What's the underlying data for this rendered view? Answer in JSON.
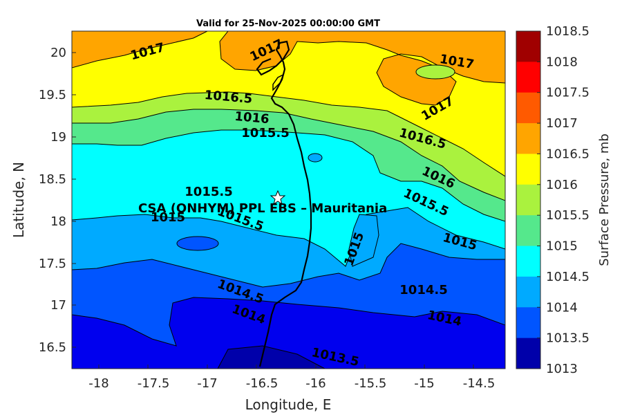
{
  "title": "Valid for 25-Nov-2025 00:00:00 GMT",
  "xlabel": "Longitude, E",
  "ylabel": "Latitude, N",
  "xticks": [
    "-18",
    "-17.5",
    "-17",
    "-16.5",
    "-16",
    "-15.5",
    "-15",
    "-14.5"
  ],
  "yticks": [
    "20",
    "19.5",
    "19",
    "18.5",
    "18",
    "17.5",
    "17",
    "16.5"
  ],
  "colorbar": {
    "label": "Surface Pressure, mb",
    "ticks": [
      "1018.5",
      "1018",
      "1017.5",
      "1017",
      "1016.5",
      "1016",
      "1015.5",
      "1015",
      "1014.5",
      "1014",
      "1013.5",
      "1013"
    ],
    "colors": [
      "#a00000",
      "#ff0000",
      "#ff5a00",
      "#ffa500",
      "#ffff00",
      "#aaf23e",
      "#55e88c",
      "#00ffff",
      "#00aaff",
      "#0055ff",
      "#0000ee",
      "#0000aa"
    ]
  },
  "contour_labels": [
    "1017",
    "1017",
    "1017",
    "1017",
    "1016.5",
    "1016.5",
    "1016",
    "1016",
    "1015.5",
    "1015.5",
    "1015.5",
    "1015.5",
    "1015",
    "1015",
    "1015",
    "1014.5",
    "1014.5",
    "1014",
    "1014",
    "1013.5"
  ],
  "site": {
    "name": "CSA (ONHYM) PPL EBS  – Mauritania",
    "marker": "white-star-icon"
  }
}
